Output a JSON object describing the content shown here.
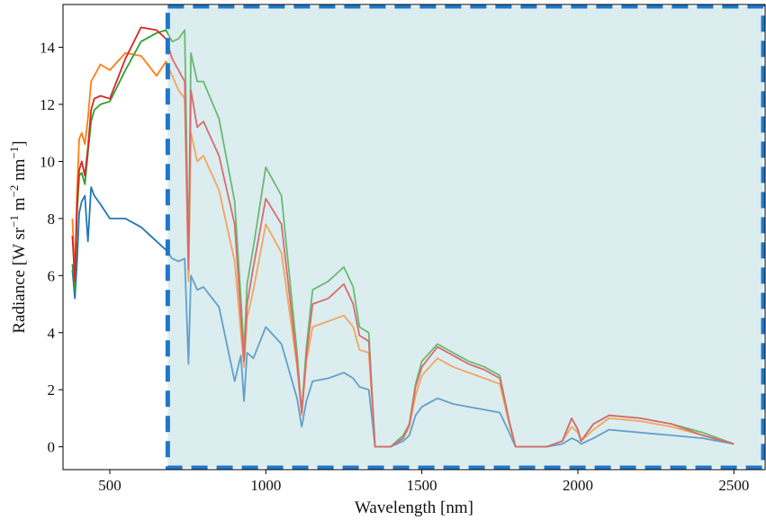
{
  "chart_data": {
    "type": "line",
    "xlabel": "Wavelength [nm]",
    "ylabel_parts": {
      "base": "Radiance [W sr",
      "sup1": "−1",
      "mid": " m",
      "sup2": "−2",
      "mid2": " nm",
      "sup3": "−1",
      "end": "]"
    },
    "xlim": [
      350,
      2600
    ],
    "ylim": [
      -0.8,
      15.5
    ],
    "xticks": [
      500,
      1000,
      1500,
      2000,
      2500
    ],
    "xtick_labels": [
      "500",
      "1000",
      "1500",
      "2000",
      "2500"
    ],
    "yticks": [
      0,
      2,
      4,
      6,
      8,
      10,
      12,
      14
    ],
    "ytick_labels": [
      "0",
      "2",
      "4",
      "6",
      "8",
      "10",
      "12",
      "14"
    ],
    "highlight_region": {
      "x_start": 680,
      "x_end": 2600,
      "fill": "#dcedf0",
      "stroke": "#1f77c8"
    },
    "colors": {
      "series1": "#1f77b4",
      "series2": "#ff7f0e",
      "series3": "#2ca02c",
      "series4": "#d62728"
    },
    "series": [
      {
        "color": "#1f77b4",
        "x": [
          380,
          388,
          395,
          402,
          410,
          420,
          430,
          440,
          450,
          470,
          500,
          550,
          600,
          650,
          680,
          700,
          720,
          740,
          752,
          760,
          780,
          800,
          850,
          900,
          920,
          930,
          940,
          960,
          1000,
          1050,
          1100,
          1115,
          1130,
          1150,
          1200,
          1250,
          1280,
          1300,
          1330,
          1350,
          1360,
          1400,
          1440,
          1460,
          1480,
          1500,
          1550,
          1600,
          1650,
          1700,
          1750,
          1780,
          1800,
          1850,
          1900,
          1950,
          1980,
          2000,
          2010,
          2050,
          2100,
          2200,
          2300,
          2400,
          2500
        ],
        "y": [
          6.2,
          5.2,
          6.5,
          8.2,
          8.6,
          8.8,
          7.2,
          9.1,
          8.8,
          8.5,
          8.0,
          8.0,
          7.7,
          7.2,
          6.9,
          6.6,
          6.5,
          6.6,
          2.9,
          6.0,
          5.5,
          5.6,
          4.9,
          2.3,
          3.2,
          1.6,
          3.3,
          3.1,
          4.2,
          3.6,
          1.7,
          0.7,
          1.6,
          2.3,
          2.4,
          2.6,
          2.4,
          2.1,
          2.0,
          0.0,
          0.0,
          0.0,
          0.2,
          0.4,
          1.1,
          1.4,
          1.7,
          1.5,
          1.4,
          1.3,
          1.2,
          0.5,
          0.0,
          0.0,
          0.0,
          0.1,
          0.3,
          0.2,
          0.1,
          0.3,
          0.6,
          0.5,
          0.4,
          0.3,
          0.1
        ]
      },
      {
        "color": "#ff7f0e",
        "x": [
          380,
          388,
          395,
          402,
          410,
          420,
          430,
          440,
          450,
          470,
          500,
          550,
          600,
          650,
          680,
          700,
          720,
          740,
          752,
          760,
          780,
          800,
          850,
          900,
          920,
          930,
          940,
          960,
          1000,
          1050,
          1100,
          1115,
          1130,
          1150,
          1200,
          1250,
          1280,
          1300,
          1330,
          1350,
          1360,
          1400,
          1440,
          1460,
          1480,
          1500,
          1550,
          1600,
          1650,
          1700,
          1750,
          1780,
          1800,
          1850,
          1900,
          1950,
          1980,
          2000,
          2010,
          2050,
          2100,
          2200,
          2300,
          2400,
          2500
        ],
        "y": [
          8.0,
          6.0,
          9.0,
          10.8,
          11.0,
          10.6,
          11.5,
          12.8,
          13.0,
          13.4,
          13.2,
          13.8,
          13.7,
          13.0,
          13.5,
          13.0,
          12.5,
          12.2,
          5.8,
          11.0,
          10.0,
          10.2,
          9.0,
          6.5,
          4.0,
          2.8,
          4.5,
          5.5,
          7.8,
          6.8,
          2.8,
          1.1,
          3.0,
          4.2,
          4.4,
          4.6,
          4.2,
          3.4,
          3.3,
          0.0,
          0.0,
          0.0,
          0.3,
          0.7,
          1.8,
          2.5,
          3.1,
          2.8,
          2.6,
          2.4,
          2.2,
          0.8,
          0.0,
          0.0,
          0.0,
          0.2,
          0.7,
          0.5,
          0.2,
          0.6,
          1.0,
          0.9,
          0.7,
          0.4,
          0.1
        ]
      },
      {
        "color": "#2ca02c",
        "x": [
          380,
          388,
          395,
          402,
          410,
          420,
          430,
          440,
          450,
          470,
          500,
          550,
          600,
          650,
          680,
          700,
          720,
          740,
          752,
          760,
          780,
          800,
          850,
          900,
          920,
          930,
          940,
          960,
          1000,
          1050,
          1100,
          1115,
          1130,
          1150,
          1200,
          1250,
          1280,
          1300,
          1330,
          1350,
          1360,
          1400,
          1440,
          1460,
          1480,
          1500,
          1550,
          1600,
          1650,
          1700,
          1750,
          1780,
          1800,
          1850,
          1900,
          1950,
          1980,
          2000,
          2010,
          2050,
          2100,
          2200,
          2300,
          2400,
          2500
        ],
        "y": [
          6.4,
          5.5,
          8.2,
          9.5,
          9.6,
          9.2,
          10.3,
          11.4,
          11.8,
          12.0,
          12.1,
          13.2,
          14.2,
          14.5,
          14.6,
          14.2,
          14.3,
          14.6,
          6.5,
          13.8,
          12.8,
          12.8,
          11.5,
          8.6,
          5.2,
          3.3,
          5.7,
          7.0,
          9.8,
          8.8,
          3.3,
          1.2,
          3.5,
          5.5,
          5.8,
          6.3,
          5.6,
          4.2,
          4.0,
          0.0,
          0.0,
          0.0,
          0.4,
          0.8,
          2.2,
          3.0,
          3.6,
          3.3,
          3.0,
          2.8,
          2.5,
          0.9,
          0.0,
          0.0,
          0.0,
          0.2,
          1.0,
          0.6,
          0.2,
          0.8,
          1.1,
          1.0,
          0.8,
          0.5,
          0.1
        ]
      },
      {
        "color": "#d62728",
        "x": [
          380,
          388,
          395,
          402,
          410,
          420,
          430,
          440,
          450,
          470,
          500,
          550,
          600,
          650,
          680,
          700,
          720,
          740,
          752,
          760,
          780,
          800,
          850,
          900,
          920,
          930,
          940,
          960,
          1000,
          1050,
          1100,
          1115,
          1130,
          1150,
          1200,
          1250,
          1280,
          1300,
          1330,
          1350,
          1360,
          1400,
          1440,
          1460,
          1480,
          1500,
          1550,
          1600,
          1650,
          1700,
          1750,
          1780,
          1800,
          1850,
          1900,
          1950,
          1980,
          2000,
          2010,
          2050,
          2100,
          2200,
          2300,
          2400,
          2500
        ],
        "y": [
          7.4,
          5.8,
          8.5,
          9.7,
          10.0,
          9.5,
          10.5,
          11.8,
          12.2,
          12.3,
          12.2,
          13.6,
          14.7,
          14.6,
          14.3,
          13.6,
          13.2,
          12.8,
          6.2,
          12.5,
          11.2,
          11.4,
          10.2,
          7.8,
          4.6,
          3.0,
          5.0,
          6.3,
          8.7,
          7.8,
          3.0,
          1.2,
          3.2,
          5.0,
          5.2,
          5.7,
          5.0,
          3.9,
          3.7,
          0.0,
          0.0,
          0.0,
          0.3,
          0.8,
          2.1,
          2.8,
          3.5,
          3.2,
          2.9,
          2.7,
          2.4,
          0.9,
          0.0,
          0.0,
          0.0,
          0.2,
          1.0,
          0.6,
          0.2,
          0.8,
          1.1,
          1.0,
          0.8,
          0.4,
          0.1
        ]
      }
    ]
  }
}
